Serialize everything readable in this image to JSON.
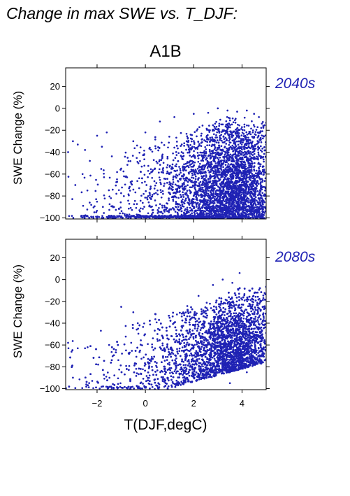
{
  "figure": {
    "title": "Change in max SWE vs. T_DJF:",
    "scenario": "A1B",
    "xlabel": "T(DJF,degC)"
  },
  "colors": {
    "points": "#1f22b4",
    "axes": "#000000",
    "period_label": "#1f22b4"
  },
  "chart_data": [
    {
      "type": "scatter",
      "period_label": "2040s",
      "ylabel": "SWE Change (%)",
      "xlim": [
        -3.3,
        5.0
      ],
      "ylim": [
        -101,
        37
      ],
      "xticks": [
        -2,
        0,
        2,
        4
      ],
      "xtick_labels": [
        "−2",
        "0",
        "2",
        "4"
      ],
      "yticks": [
        20,
        0,
        -20,
        -40,
        -60,
        -80,
        -100
      ],
      "ytick_labels": [
        "20",
        "0",
        "−20",
        "−40",
        "−60",
        "−80",
        "−100"
      ],
      "show_xtick_labels": false,
      "points_shown_approx": 4000,
      "sampled_points": [
        [
          -3.2,
          -40
        ],
        [
          -3.0,
          -30
        ],
        [
          -2.8,
          -33
        ],
        [
          -2.5,
          -38
        ],
        [
          -2.3,
          -48
        ],
        [
          -2.0,
          -25
        ],
        [
          -1.6,
          -22
        ],
        [
          -1.8,
          -35
        ],
        [
          -2.6,
          -60
        ],
        [
          -2.9,
          -70
        ],
        [
          -2.4,
          -75
        ],
        [
          -1.2,
          -78
        ],
        [
          -0.8,
          -62
        ],
        [
          -1.0,
          -55
        ],
        [
          -0.5,
          -30
        ],
        [
          0.0,
          -22
        ],
        [
          0.6,
          -12
        ],
        [
          1.2,
          -8
        ],
        [
          2.0,
          -5
        ],
        [
          2.6,
          -4
        ],
        [
          3.0,
          0
        ],
        [
          3.4,
          -2
        ],
        [
          3.8,
          -3
        ],
        [
          4.2,
          -2
        ],
        [
          4.5,
          -5
        ],
        [
          4.7,
          -8
        ],
        [
          3.2,
          -20
        ],
        [
          2.8,
          -30
        ],
        [
          1.5,
          -40
        ],
        [
          0.5,
          -50
        ],
        [
          4.0,
          -60
        ],
        [
          3.5,
          -70
        ],
        [
          2.5,
          -85
        ],
        [
          1.8,
          -95
        ],
        [
          4.6,
          -98
        ],
        [
          3.9,
          -88
        ]
      ]
    },
    {
      "type": "scatter",
      "period_label": "2080s",
      "ylabel": "SWE Change (%)",
      "xlim": [
        -3.3,
        5.0
      ],
      "ylim": [
        -101,
        37
      ],
      "xticks": [
        -2,
        0,
        2,
        4
      ],
      "xtick_labels": [
        "−2",
        "0",
        "2",
        "4"
      ],
      "yticks": [
        20,
        0,
        -20,
        -40,
        -60,
        -80,
        -100
      ],
      "ytick_labels": [
        "20",
        "0",
        "−20",
        "−40",
        "−60",
        "−80",
        "−100"
      ],
      "show_xtick_labels": true,
      "points_shown_approx": 4000,
      "sampled_points": [
        [
          -3.2,
          -58
        ],
        [
          -2.8,
          -63
        ],
        [
          -2.5,
          -63
        ],
        [
          -3.0,
          -90
        ],
        [
          -2.2,
          -93
        ],
        [
          -1.5,
          -60
        ],
        [
          -1.0,
          -25
        ],
        [
          -0.5,
          -30
        ],
        [
          -0.3,
          -45
        ],
        [
          -0.8,
          -65
        ],
        [
          0.5,
          -50
        ],
        [
          1.0,
          -35
        ],
        [
          2.2,
          -15
        ],
        [
          2.8,
          -5
        ],
        [
          3.2,
          0
        ],
        [
          3.6,
          -3
        ],
        [
          3.9,
          6
        ],
        [
          4.3,
          -10
        ],
        [
          4.6,
          -12
        ],
        [
          3.0,
          -40
        ],
        [
          2.5,
          -60
        ],
        [
          1.8,
          -75
        ],
        [
          4.2,
          -85
        ],
        [
          3.5,
          -95
        ],
        [
          0.8,
          -92
        ],
        [
          2.0,
          -88
        ],
        [
          4.8,
          -70
        ],
        [
          4.0,
          -50
        ]
      ]
    }
  ]
}
